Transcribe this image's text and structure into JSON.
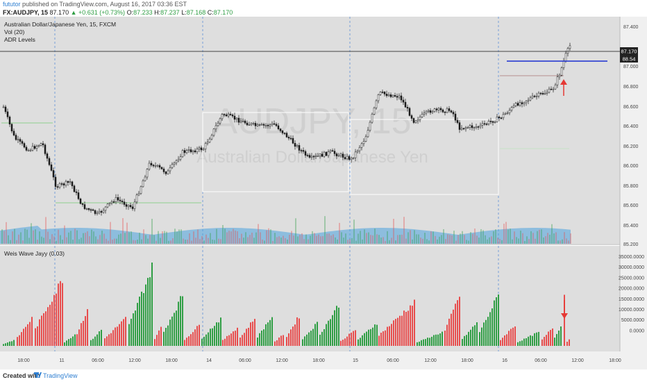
{
  "header": {
    "publisher": "fututor",
    "published_text": "published on TradingView.com, August 16, 2017 03:36 EST",
    "symbol": "FX:AUDJPY, 15",
    "last": "87.170",
    "change": "▲ +0.631 (+0.73%)",
    "o_label": "O:",
    "o_value": "87.233",
    "h_label": "H:",
    "h_value": "87.237",
    "l_label": "L:",
    "l_value": "87.168",
    "c_label": "C:",
    "c_value": "87.170"
  },
  "main_pane": {
    "title": "Australian Dollar/Japanese Yen, 15, FXCM",
    "indicator_1": "Vol (20)",
    "indicator_2": "ADR Levels",
    "watermark_symbol": "AUDJPY, 15",
    "watermark_name": "Australian Dollar/Japanese Yen",
    "price_ticks": [
      "87.400",
      "87.000",
      "86.800",
      "86.600",
      "86.400",
      "86.200",
      "86.000",
      "85.800",
      "85.600",
      "85.400",
      "85.200"
    ],
    "last_price_label": "87.170",
    "level_label": "88.54"
  },
  "sub_pane": {
    "title": "Weis Wave Jayy (0.03)",
    "ticks": [
      "35000.0000",
      "30000.0000",
      "25000.0000",
      "20000.0000",
      "15000.0000",
      "10000.0000",
      "5000.0000",
      "0.0000"
    ]
  },
  "time_axis": {
    "labels": [
      "18:00",
      "11",
      "06:00",
      "12:00",
      "18:00",
      "14",
      "06:00",
      "12:00",
      "18:00",
      "15",
      "06:00",
      "12:00",
      "18:00",
      "16",
      "06:00",
      "12:00",
      "18:00"
    ]
  },
  "footer": {
    "created_with": "Created with",
    "brand": "TradingView"
  },
  "colors": {
    "bull": "#2f9e44",
    "bear": "#e84c4c",
    "level_blue": "#1a2fd1",
    "arrow_red": "#e53935",
    "volume_area": "#4aa3df"
  },
  "chart_data": {
    "type": "candlestick",
    "price_axis_range": [
      85.2,
      87.4
    ],
    "candles_close_path": [
      {
        "x": "Aug 10 15:00",
        "y": 86.56
      },
      {
        "x": "Aug 10 19:00",
        "y": 86.28
      },
      {
        "x": "Aug 11 00:00",
        "y": 85.95
      },
      {
        "x": "Aug 11 04:00",
        "y": 85.55
      },
      {
        "x": "Aug 11 06:00",
        "y": 85.49
      },
      {
        "x": "Aug 11 09:00",
        "y": 85.75
      },
      {
        "x": "Aug 11 12:00",
        "y": 85.55
      },
      {
        "x": "Aug 11 16:00",
        "y": 86.15
      },
      {
        "x": "Aug 11 18:00",
        "y": 86.05
      },
      {
        "x": "Aug 14 00:00",
        "y": 86.25
      },
      {
        "x": "Aug 14 03:00",
        "y": 86.62
      },
      {
        "x": "Aug 14 06:00",
        "y": 86.45
      },
      {
        "x": "Aug 14 09:00",
        "y": 86.45
      },
      {
        "x": "Aug 14 13:00",
        "y": 86.25
      },
      {
        "x": "Aug 14 16:00",
        "y": 86.08
      },
      {
        "x": "Aug 14 20:00",
        "y": 86.15
      },
      {
        "x": "Aug 15 00:00",
        "y": 86.4
      },
      {
        "x": "Aug 15 03:00",
        "y": 86.72
      },
      {
        "x": "Aug 15 06:00",
        "y": 86.7
      },
      {
        "x": "Aug 15 10:00",
        "y": 86.45
      },
      {
        "x": "Aug 15 13:00",
        "y": 86.6
      },
      {
        "x": "Aug 15 15:00",
        "y": 86.38
      },
      {
        "x": "Aug 15 18:00",
        "y": 86.4
      },
      {
        "x": "Aug 16 00:00",
        "y": 86.5
      },
      {
        "x": "Aug 16 04:00",
        "y": 86.75
      },
      {
        "x": "Aug 16 08:00",
        "y": 86.85
      },
      {
        "x": "Aug 16 10:00",
        "y": 87.17
      }
    ],
    "level_line": 87.05,
    "weis_wave_range": [
      0,
      35000
    ],
    "weis_wave_peaks": [
      {
        "x": "Aug 11 02:00",
        "value": 29000,
        "dir": "down"
      },
      {
        "x": "Aug 11 16:00",
        "value": 34000,
        "dir": "up"
      },
      {
        "x": "Aug 14 03:00",
        "value": 23000,
        "dir": "up"
      },
      {
        "x": "Aug 14 20:00",
        "value": 18000,
        "dir": "up"
      },
      {
        "x": "Aug 15 06:00",
        "value": 19000,
        "dir": "down"
      },
      {
        "x": "Aug 15 15:00",
        "value": 22000,
        "dir": "up"
      },
      {
        "x": "Aug 16 09:00",
        "value": 22500,
        "dir": "down"
      }
    ]
  }
}
